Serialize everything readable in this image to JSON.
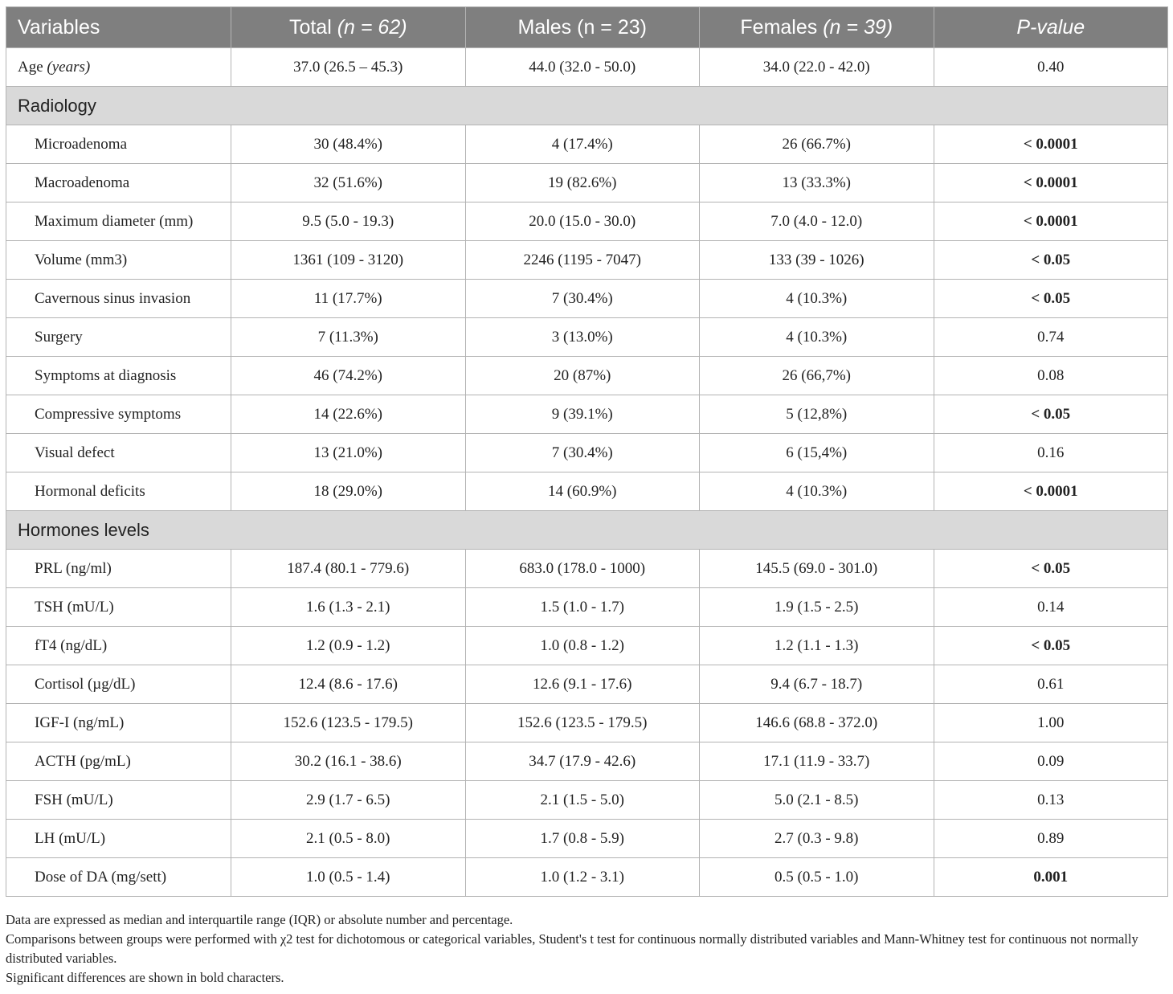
{
  "table": {
    "headers": [
      {
        "main": "Variables",
        "italic": ""
      },
      {
        "main": "Total ",
        "italic": "(n = 62)"
      },
      {
        "main": "Males (n = 23)",
        "italic": ""
      },
      {
        "main": "Females ",
        "italic": "(n = 39)"
      },
      {
        "main": "",
        "italic": "P-value"
      }
    ],
    "age_row": {
      "label": "Age ",
      "label_italic": "(years)",
      "cells": [
        "37.0 (26.5 – 45.3)",
        "44.0 (32.0 - 50.0)",
        "34.0 (22.0 - 42.0)",
        "0.40"
      ]
    },
    "sections": [
      {
        "title": "Radiology",
        "rows": [
          {
            "label": "Microadenoma",
            "cells": [
              "30 (48.4%)",
              "4 (17.4%)",
              "26 (66.7%)"
            ],
            "p": "< 0.0001",
            "p_bold": true
          },
          {
            "label": "Macroadenoma",
            "cells": [
              "32 (51.6%)",
              "19 (82.6%)",
              "13 (33.3%)"
            ],
            "p": "< 0.0001",
            "p_bold": true
          },
          {
            "label": "Maximum diameter (mm)",
            "cells": [
              "9.5 (5.0 - 19.3)",
              "20.0 (15.0 - 30.0)",
              "7.0 (4.0 - 12.0)"
            ],
            "p": "< 0.0001",
            "p_bold": true
          },
          {
            "label": "Volume (mm3)",
            "cells": [
              "1361 (109 - 3120)",
              "2246 (1195 - 7047)",
              "133 (39 - 1026)"
            ],
            "p": "< 0.05",
            "p_bold": true
          },
          {
            "label": "Cavernous sinus invasion",
            "cells": [
              "11 (17.7%)",
              "7 (30.4%)",
              "4 (10.3%)"
            ],
            "p": "< 0.05",
            "p_bold": true
          },
          {
            "label": "Surgery",
            "cells": [
              "7 (11.3%)",
              "3 (13.0%)",
              "4 (10.3%)"
            ],
            "p": "0.74",
            "p_bold": false
          },
          {
            "label": "Symptoms at diagnosis",
            "cells": [
              "46 (74.2%)",
              "20 (87%)",
              "26 (66,7%)"
            ],
            "p": "0.08",
            "p_bold": false
          },
          {
            "label": "Compressive symptoms",
            "cells": [
              "14 (22.6%)",
              "9 (39.1%)",
              "5 (12,8%)"
            ],
            "p": "< 0.05",
            "p_bold": true
          },
          {
            "label": "Visual defect",
            "cells": [
              "13 (21.0%)",
              "7 (30.4%)",
              "6 (15,4%)"
            ],
            "p": "0.16",
            "p_bold": false
          },
          {
            "label": "Hormonal deficits",
            "cells": [
              "18 (29.0%)",
              "14 (60.9%)",
              "4 (10.3%)"
            ],
            "p": "< 0.0001",
            "p_bold": true
          }
        ]
      },
      {
        "title": "Hormones levels",
        "rows": [
          {
            "label": "PRL (ng/ml)",
            "cells": [
              "187.4 (80.1 - 779.6)",
              "683.0 (178.0 - 1000)",
              "145.5 (69.0 - 301.0)"
            ],
            "p": "< 0.05",
            "p_bold": true
          },
          {
            "label": "TSH (mU/L)",
            "cells": [
              "1.6 (1.3 - 2.1)",
              "1.5 (1.0 - 1.7)",
              "1.9 (1.5 - 2.5)"
            ],
            "p": "0.14",
            "p_bold": false
          },
          {
            "label": "fT4 (ng/dL)",
            "cells": [
              "1.2 (0.9 - 1.2)",
              "1.0 (0.8 - 1.2)",
              "1.2 (1.1 - 1.3)"
            ],
            "p": "< 0.05",
            "p_bold": true
          },
          {
            "label": "Cortisol (µg/dL)",
            "cells": [
              "12.4 (8.6 - 17.6)",
              "12.6 (9.1 - 17.6)",
              "9.4 (6.7 - 18.7)"
            ],
            "p": "0.61",
            "p_bold": false
          },
          {
            "label": "IGF-I (ng/mL)",
            "cells": [
              "152.6 (123.5 - 179.5)",
              "152.6 (123.5 - 179.5)",
              "146.6 (68.8 - 372.0)"
            ],
            "p": "1.00",
            "p_bold": false
          },
          {
            "label": "ACTH (pg/mL)",
            "cells": [
              "30.2 (16.1 - 38.6)",
              "34.7 (17.9 - 42.6)",
              "17.1 (11.9 - 33.7)"
            ],
            "p": "0.09",
            "p_bold": false
          },
          {
            "label": "FSH (mU/L)",
            "cells": [
              "2.9 (1.7 - 6.5)",
              "2.1 (1.5 - 5.0)",
              "5.0 (2.1 - 8.5)"
            ],
            "p": "0.13",
            "p_bold": false
          },
          {
            "label": "LH (mU/L)",
            "cells": [
              "2.1 (0.5 - 8.0)",
              "1.7 (0.8 - 5.9)",
              "2.7 (0.3 - 9.8)"
            ],
            "p": "0.89",
            "p_bold": false
          },
          {
            "label": "Dose of DA (mg/sett)",
            "cells": [
              "1.0 (0.5 - 1.4)",
              "1.0 (1.2 - 3.1)",
              "0.5 (0.5 - 1.0)"
            ],
            "p": "0.001",
            "p_bold": true
          }
        ]
      }
    ]
  },
  "footnotes": [
    "Data are expressed as median and interquartile range (IQR) or absolute number and percentage.",
    "Comparisons between groups were performed with χ2 test for dichotomous or categorical variables, Student's t test for continuous normally distributed variables and Mann-Whitney test for continuous not normally distributed variables.",
    "Significant differences are shown in bold characters."
  ],
  "colors": {
    "header_bg": "#7f7f7f",
    "section_bg": "#d9d9d9",
    "border": "#b3b3b3"
  }
}
